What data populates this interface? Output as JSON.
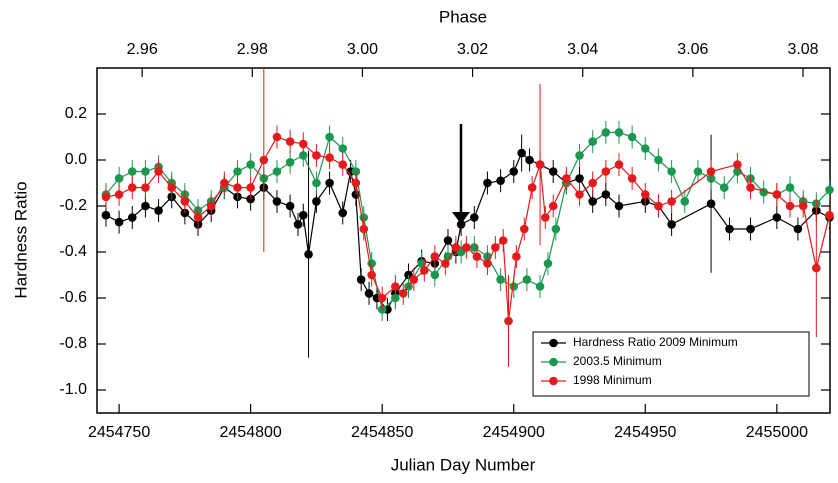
{
  "chart_data": {
    "type": "scatter",
    "x2_label": "Phase",
    "x_label": "Julian Day Number",
    "y_label": "Hardness Ratio",
    "xlim": [
      2454741.6,
      2455020.2
    ],
    "xticks": [
      2454750,
      2454800,
      2454850,
      2454900,
      2454950,
      2455000
    ],
    "x2lim": [
      2.9518,
      3.0849
    ],
    "x2ticks": [
      2.96,
      2.98,
      {
        "value": 3,
        "label": "3.00"
      },
      3.02,
      3.04,
      3.06,
      3.08
    ],
    "ylim": [
      -1.1,
      0.4
    ],
    "yticks": [
      0.2,
      {
        "value": 0,
        "label": "0.0"
      },
      -0.2,
      -0.4,
      -0.6,
      -0.8,
      {
        "value": -1,
        "label": "-1.0"
      }
    ],
    "legend": "lower right",
    "series": [
      {
        "name": "Hardness Ratio 2009 Minimum",
        "color": "#000000",
        "x": [
          2454745,
          2454750,
          2454755,
          2454760,
          2454765,
          2454770,
          2454775,
          2454780,
          2454785,
          2454790,
          2454795,
          2454800,
          2454805,
          2454810,
          2454815,
          2454818,
          2454820,
          2454822,
          2454825,
          2454830,
          2454835,
          2454838,
          2454840,
          2454842,
          2454845,
          2454848,
          2454852,
          2454855,
          2454860,
          2454865,
          2454870,
          2454875,
          2454878,
          2454880,
          2454885,
          2454890,
          2454895,
          2454900,
          2454903,
          2454906,
          2454910,
          2454915,
          2454920,
          2454925,
          2454930,
          2454935,
          2454940,
          2454950,
          2454955,
          2454960,
          2454975,
          2454982,
          2454990,
          2455000,
          2455008,
          2455015,
          2455020
        ],
        "values": [
          -0.24,
          -0.27,
          -0.25,
          -0.2,
          -0.22,
          -0.16,
          -0.23,
          -0.28,
          -0.22,
          -0.12,
          -0.16,
          -0.17,
          -0.12,
          -0.18,
          -0.2,
          -0.28,
          -0.24,
          -0.41,
          -0.18,
          -0.1,
          -0.23,
          -0.05,
          -0.15,
          -0.52,
          -0.58,
          -0.6,
          -0.65,
          -0.58,
          -0.5,
          -0.44,
          -0.45,
          -0.35,
          -0.4,
          -0.28,
          -0.25,
          -0.1,
          -0.09,
          -0.05,
          0.03,
          0,
          -0.02,
          -0.05,
          -0.1,
          -0.08,
          -0.18,
          -0.15,
          -0.2,
          -0.18,
          -0.2,
          -0.28,
          -0.19,
          -0.3,
          -0.3,
          -0.25,
          -0.3,
          -0.22,
          -0.25
        ],
        "errors": [
          0.05,
          0.05,
          0.05,
          0.05,
          0.05,
          0.05,
          0.05,
          0.05,
          0.05,
          0.05,
          0.05,
          0.05,
          0.05,
          0.05,
          0.05,
          0.05,
          0.05,
          0.45,
          0.05,
          0.05,
          0.05,
          0.05,
          0.05,
          0.05,
          0.05,
          0.05,
          0.05,
          0.05,
          0.05,
          0.05,
          0.05,
          0.05,
          0.05,
          0.05,
          0.05,
          0.05,
          0.05,
          0.05,
          0.08,
          0.05,
          0.05,
          0.05,
          0.05,
          0.05,
          0.05,
          0.05,
          0.05,
          0.05,
          0.05,
          0.05,
          0.3,
          0.05,
          0.05,
          0.05,
          0.05,
          0.05,
          0.05
        ]
      },
      {
        "name": "2003.5 Minimum",
        "color": "#1a9850",
        "x": [
          2454745,
          2454750,
          2454755,
          2454760,
          2454765,
          2454770,
          2454775,
          2454780,
          2454785,
          2454790,
          2454795,
          2454800,
          2454805,
          2454810,
          2454815,
          2454820,
          2454825,
          2454830,
          2454835,
          2454840,
          2454843,
          2454846,
          2454850,
          2454855,
          2454860,
          2454865,
          2454870,
          2454875,
          2454880,
          2454885,
          2454890,
          2454895,
          2454900,
          2454905,
          2454910,
          2454913,
          2454916,
          2454920,
          2454925,
          2454930,
          2454935,
          2454940,
          2454945,
          2454950,
          2454955,
          2454960,
          2454965,
          2454970,
          2454975,
          2454980,
          2454985,
          2454990,
          2454995,
          2455000,
          2455005,
          2455010,
          2455015,
          2455020
        ],
        "values": [
          -0.15,
          -0.08,
          -0.05,
          -0.05,
          -0.03,
          -0.1,
          -0.15,
          -0.22,
          -0.18,
          -0.12,
          -0.05,
          -0.02,
          -0.08,
          -0.05,
          -0.01,
          0.02,
          -0.1,
          0.1,
          0.05,
          -0.05,
          -0.25,
          -0.45,
          -0.65,
          -0.6,
          -0.55,
          -0.45,
          -0.5,
          -0.42,
          -0.4,
          -0.38,
          -0.42,
          -0.52,
          -0.55,
          -0.52,
          -0.55,
          -0.45,
          -0.3,
          -0.1,
          0.02,
          0.08,
          0.12,
          0.12,
          0.1,
          0.05,
          0,
          -0.05,
          -0.18,
          -0.05,
          -0.08,
          -0.12,
          -0.05,
          -0.08,
          -0.14,
          -0.15,
          -0.12,
          -0.18,
          -0.19,
          -0.13
        ],
        "errors": [
          0.05,
          0.05,
          0.05,
          0.05,
          0.05,
          0.05,
          0.05,
          0.05,
          0.05,
          0.05,
          0.05,
          0.05,
          0.05,
          0.05,
          0.05,
          0.05,
          0.05,
          0.05,
          0.05,
          0.05,
          0.05,
          0.05,
          0.05,
          0.05,
          0.05,
          0.05,
          0.05,
          0.05,
          0.05,
          0.05,
          0.05,
          0.05,
          0.05,
          0.05,
          0.05,
          0.05,
          0.05,
          0.05,
          0.05,
          0.05,
          0.05,
          0.05,
          0.05,
          0.05,
          0.05,
          0.05,
          0.05,
          0.05,
          0.05,
          0.05,
          0.05,
          0.05,
          0.05,
          0.05,
          0.05,
          0.05,
          0.05,
          0.05
        ]
      },
      {
        "name": "1998 Minimum",
        "color": "#e41a1c",
        "x": [
          2454745,
          2454750,
          2454755,
          2454760,
          2454765,
          2454770,
          2454775,
          2454780,
          2454785,
          2454790,
          2454795,
          2454800,
          2454805,
          2454810,
          2454815,
          2454820,
          2454825,
          2454830,
          2454835,
          2454840,
          2454843,
          2454846,
          2454850,
          2454855,
          2454858,
          2454862,
          2454866,
          2454870,
          2454874,
          2454878,
          2454882,
          2454886,
          2454890,
          2454893,
          2454896,
          2454898,
          2454901,
          2454904,
          2454907,
          2454910,
          2454912,
          2454915,
          2454920,
          2454925,
          2454930,
          2454935,
          2454940,
          2454945,
          2454950,
          2454955,
          2454960,
          2454975,
          2454985,
          2454990,
          2455000,
          2455005,
          2455010,
          2455015,
          2455020
        ],
        "values": [
          -0.16,
          -0.15,
          -0.12,
          -0.12,
          -0.05,
          -0.12,
          -0.18,
          -0.25,
          -0.2,
          -0.1,
          -0.12,
          -0.12,
          0,
          0.1,
          0.08,
          0.07,
          0.02,
          0.01,
          -0.02,
          -0.1,
          -0.3,
          -0.5,
          -0.6,
          -0.55,
          -0.58,
          -0.52,
          -0.48,
          -0.42,
          -0.45,
          -0.38,
          -0.38,
          -0.42,
          -0.45,
          -0.38,
          -0.35,
          -0.7,
          -0.42,
          -0.3,
          -0.12,
          -0.02,
          -0.25,
          -0.2,
          -0.08,
          -0.15,
          -0.1,
          -0.05,
          -0.02,
          -0.08,
          -0.15,
          -0.2,
          -0.18,
          -0.05,
          -0.02,
          -0.12,
          -0.15,
          -0.2,
          -0.2,
          -0.47,
          -0.24
        ],
        "errors": [
          0.05,
          0.05,
          0.05,
          0.05,
          0.05,
          0.05,
          0.05,
          0.05,
          0.05,
          0.05,
          0.05,
          0.05,
          0.4,
          0.05,
          0.05,
          0.05,
          0.05,
          0.05,
          0.05,
          0.05,
          0.05,
          0.05,
          0.05,
          0.05,
          0.05,
          0.05,
          0.05,
          0.05,
          0.05,
          0.05,
          0.05,
          0.05,
          0.05,
          0.05,
          0.05,
          0.2,
          0.05,
          0.05,
          0.05,
          0.35,
          0.05,
          0.05,
          0.05,
          0.05,
          0.05,
          0.05,
          0.05,
          0.05,
          0.05,
          0.05,
          0.05,
          0.05,
          0.05,
          0.05,
          0.05,
          0.05,
          0.05,
          0.3,
          0.05
        ]
      }
    ]
  }
}
